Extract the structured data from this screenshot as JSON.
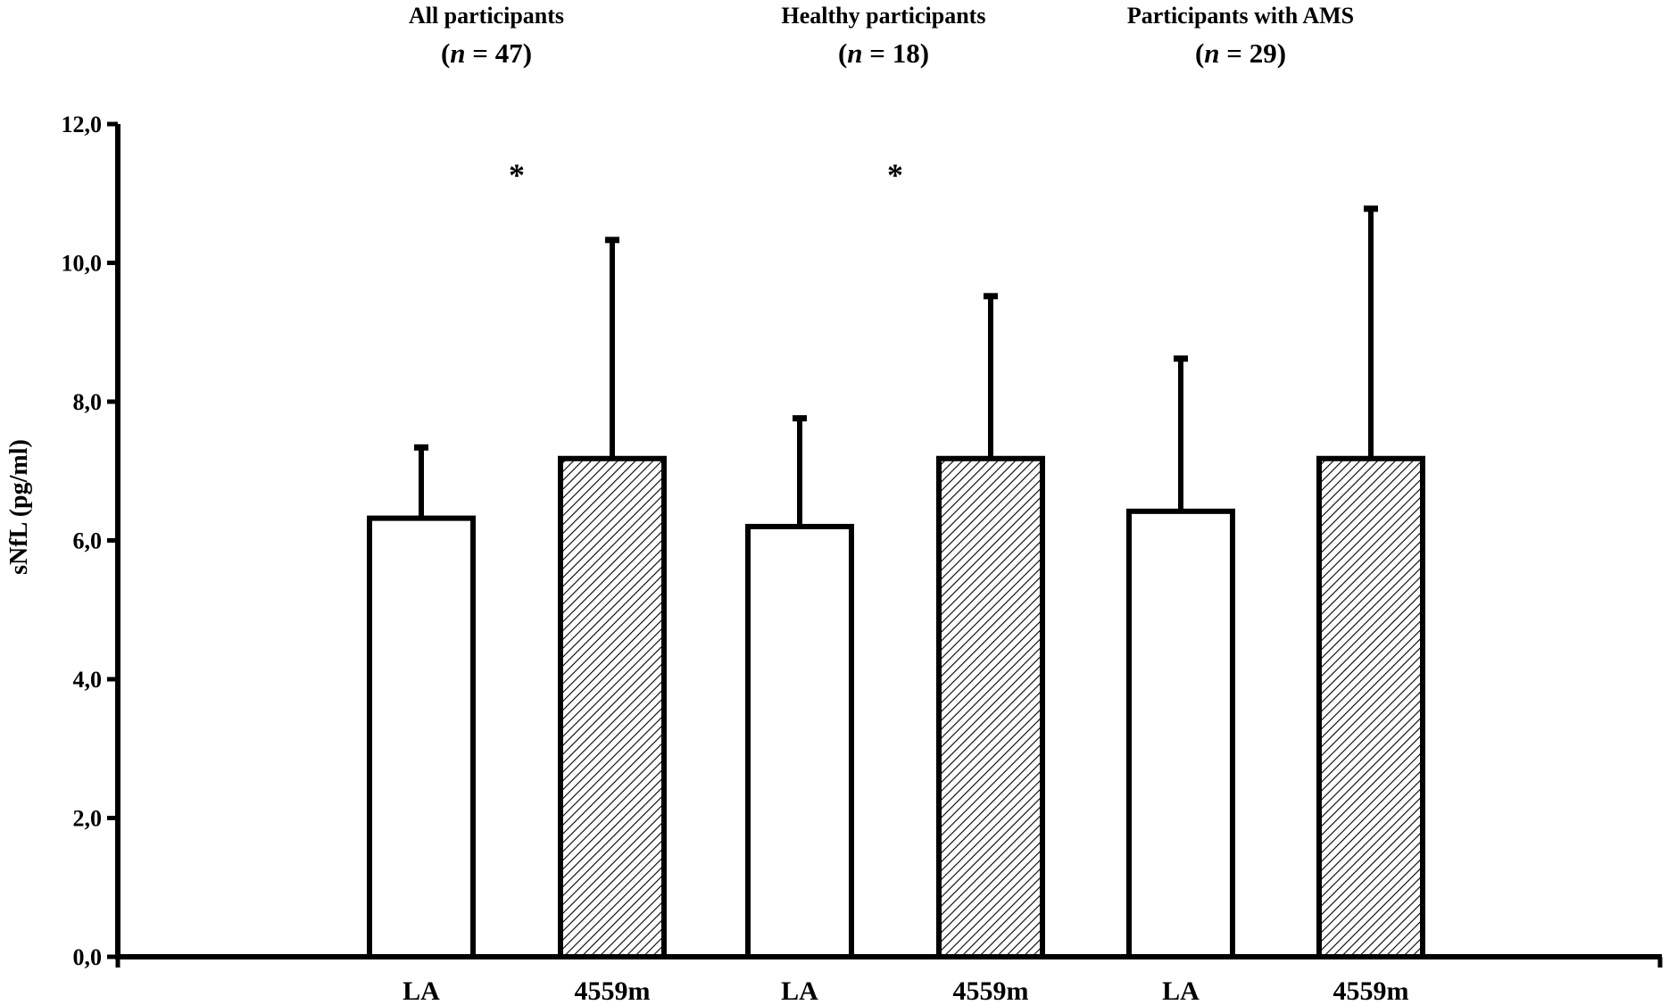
{
  "chart_data": {
    "type": "bar",
    "ylabel": "sNfL (pg/ml)",
    "ylim": [
      0,
      12
    ],
    "yticks": [
      "0,0",
      "2,0",
      "4,0",
      "6,0",
      "8,0",
      "10,0",
      "12,0"
    ],
    "ytick_values": [
      0,
      2,
      4,
      6,
      8,
      10,
      12
    ],
    "grid": false,
    "groups": [
      {
        "title": "All participants",
        "n_text": "(n = 47)",
        "n_prefix": "(",
        "n_italic": "n",
        "n_suffix": " = 47)",
        "significance": "*",
        "bars": [
          {
            "category": "LA",
            "value": 6.32,
            "error": 1.02,
            "pattern": "open"
          },
          {
            "category": "4559m",
            "value": 7.18,
            "error": 3.15,
            "pattern": "hatched"
          }
        ]
      },
      {
        "title": "Healthy participants",
        "n_text": "(n = 18)",
        "n_prefix": "(",
        "n_italic": "n",
        "n_suffix": " = 18)",
        "significance": "*",
        "bars": [
          {
            "category": "LA",
            "value": 6.2,
            "error": 1.56,
            "pattern": "open"
          },
          {
            "category": "4559m",
            "value": 7.18,
            "error": 2.34,
            "pattern": "hatched"
          }
        ]
      },
      {
        "title": "Participants with AMS",
        "n_text": "(n = 29)",
        "n_prefix": "(",
        "n_italic": "n",
        "n_suffix": " = 29)",
        "significance": "",
        "bars": [
          {
            "category": "LA",
            "value": 6.42,
            "error": 2.2,
            "pattern": "open"
          },
          {
            "category": "4559m",
            "value": 7.18,
            "error": 3.6,
            "pattern": "hatched"
          }
        ]
      }
    ],
    "colors": {
      "axis": "#000000",
      "bar_fill_open": "#ffffff",
      "bar_stroke": "#000000",
      "hatch": "#000000"
    }
  }
}
